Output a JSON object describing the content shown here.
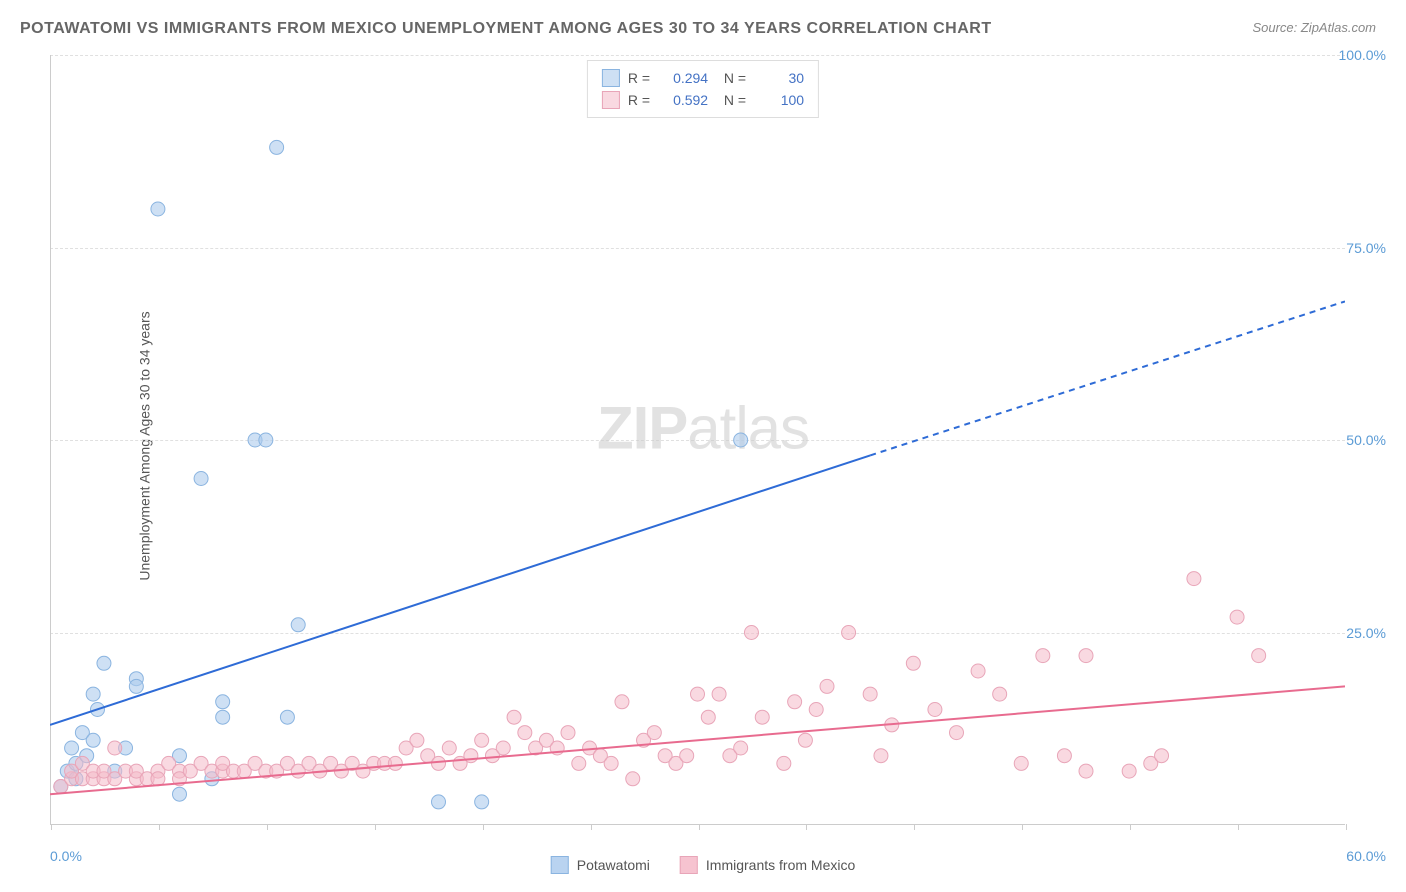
{
  "title": "POTAWATOMI VS IMMIGRANTS FROM MEXICO UNEMPLOYMENT AMONG AGES 30 TO 34 YEARS CORRELATION CHART",
  "source": "Source: ZipAtlas.com",
  "ylabel": "Unemployment Among Ages 30 to 34 years",
  "watermark_bold": "ZIP",
  "watermark_rest": "atlas",
  "chart": {
    "type": "scatter",
    "xlim": [
      0,
      60
    ],
    "ylim": [
      0,
      100
    ],
    "xtick_step": 5,
    "ytick_step": 25,
    "ytick_labels": [
      "25.0%",
      "50.0%",
      "75.0%",
      "100.0%"
    ],
    "xaxis_min_label": "0.0%",
    "xaxis_max_label": "60.0%",
    "background_color": "#ffffff",
    "grid_color": "#e0e0e0",
    "axis_color": "#cccccc",
    "tick_label_color": "#5b9bd5",
    "series": [
      {
        "name": "Potawatomi",
        "marker_fill": "rgba(173,203,237,0.6)",
        "marker_stroke": "#8ab4e0",
        "line_color": "#2e6bd6",
        "line_width": 2,
        "marker_radius": 7,
        "R": 0.294,
        "N": 30,
        "trend": {
          "x1": 0,
          "y1": 13,
          "x2": 38,
          "y2": 48,
          "dash_from_x": 38,
          "x3": 60,
          "y3": 68
        },
        "points": [
          [
            0.5,
            5
          ],
          [
            0.8,
            7
          ],
          [
            1,
            10
          ],
          [
            1.2,
            6
          ],
          [
            1.2,
            8
          ],
          [
            1.5,
            12
          ],
          [
            1.7,
            9
          ],
          [
            2,
            11
          ],
          [
            2,
            17
          ],
          [
            2.2,
            15
          ],
          [
            2.5,
            21
          ],
          [
            3,
            7
          ],
          [
            3.5,
            10
          ],
          [
            4,
            19
          ],
          [
            4,
            18
          ],
          [
            5,
            80
          ],
          [
            6,
            9
          ],
          [
            7,
            45
          ],
          [
            7.5,
            6
          ],
          [
            8,
            16
          ],
          [
            8,
            14
          ],
          [
            9.5,
            50
          ],
          [
            10,
            50
          ],
          [
            10.5,
            88
          ],
          [
            11,
            14
          ],
          [
            11.5,
            26
          ],
          [
            18,
            3
          ],
          [
            20,
            3
          ],
          [
            32,
            50
          ],
          [
            6,
            4
          ]
        ]
      },
      {
        "name": "Immigrants from Mexico",
        "marker_fill": "rgba(244,185,200,0.55)",
        "marker_stroke": "#e8a5b8",
        "line_color": "#e86b8f",
        "line_width": 2,
        "marker_radius": 7,
        "R": 0.592,
        "N": 100,
        "trend": {
          "x1": 0,
          "y1": 4,
          "x2": 60,
          "y2": 18
        },
        "points": [
          [
            0.5,
            5
          ],
          [
            1,
            6
          ],
          [
            1,
            7
          ],
          [
            1.5,
            8
          ],
          [
            1.5,
            6
          ],
          [
            2,
            6
          ],
          [
            2,
            7
          ],
          [
            2.5,
            6
          ],
          [
            2.5,
            7
          ],
          [
            3,
            6
          ],
          [
            3,
            10
          ],
          [
            3.5,
            7
          ],
          [
            4,
            6
          ],
          [
            4,
            7
          ],
          [
            4.5,
            6
          ],
          [
            5,
            7
          ],
          [
            5,
            6
          ],
          [
            5.5,
            8
          ],
          [
            6,
            7
          ],
          [
            6,
            6
          ],
          [
            6.5,
            7
          ],
          [
            7,
            8
          ],
          [
            7.5,
            7
          ],
          [
            8,
            7
          ],
          [
            8,
            8
          ],
          [
            8.5,
            7
          ],
          [
            9,
            7
          ],
          [
            9.5,
            8
          ],
          [
            10,
            7
          ],
          [
            10.5,
            7
          ],
          [
            11,
            8
          ],
          [
            11.5,
            7
          ],
          [
            12,
            8
          ],
          [
            12.5,
            7
          ],
          [
            13,
            8
          ],
          [
            13.5,
            7
          ],
          [
            14,
            8
          ],
          [
            14.5,
            7
          ],
          [
            15,
            8
          ],
          [
            15.5,
            8
          ],
          [
            16,
            8
          ],
          [
            16.5,
            10
          ],
          [
            17,
            11
          ],
          [
            17.5,
            9
          ],
          [
            18,
            8
          ],
          [
            18.5,
            10
          ],
          [
            19,
            8
          ],
          [
            19.5,
            9
          ],
          [
            20,
            11
          ],
          [
            20.5,
            9
          ],
          [
            21,
            10
          ],
          [
            21.5,
            14
          ],
          [
            22,
            12
          ],
          [
            22.5,
            10
          ],
          [
            23,
            11
          ],
          [
            23.5,
            10
          ],
          [
            24,
            12
          ],
          [
            24.5,
            8
          ],
          [
            25,
            10
          ],
          [
            25.5,
            9
          ],
          [
            26,
            8
          ],
          [
            26.5,
            16
          ],
          [
            27,
            6
          ],
          [
            27.5,
            11
          ],
          [
            28,
            12
          ],
          [
            28.5,
            9
          ],
          [
            29,
            8
          ],
          [
            29.5,
            9
          ],
          [
            30,
            17
          ],
          [
            30.5,
            14
          ],
          [
            31,
            17
          ],
          [
            31.5,
            9
          ],
          [
            32,
            10
          ],
          [
            32.5,
            25
          ],
          [
            33,
            14
          ],
          [
            34,
            8
          ],
          [
            34.5,
            16
          ],
          [
            35,
            11
          ],
          [
            35.5,
            15
          ],
          [
            36,
            18
          ],
          [
            37,
            25
          ],
          [
            38,
            17
          ],
          [
            38.5,
            9
          ],
          [
            39,
            13
          ],
          [
            40,
            21
          ],
          [
            41,
            15
          ],
          [
            42,
            12
          ],
          [
            43,
            20
          ],
          [
            44,
            17
          ],
          [
            45,
            8
          ],
          [
            46,
            22
          ],
          [
            47,
            9
          ],
          [
            48,
            22
          ],
          [
            48,
            7
          ],
          [
            50,
            7
          ],
          [
            51,
            8
          ],
          [
            51.5,
            9
          ],
          [
            53,
            32
          ],
          [
            55,
            27
          ],
          [
            56,
            22
          ]
        ]
      }
    ]
  },
  "legend_bottom": [
    {
      "label": "Potawatomi",
      "fill": "rgba(173,203,237,0.85)",
      "stroke": "#8ab4e0"
    },
    {
      "label": "Immigrants from Mexico",
      "fill": "rgba(244,185,200,0.85)",
      "stroke": "#e8a5b8"
    }
  ]
}
